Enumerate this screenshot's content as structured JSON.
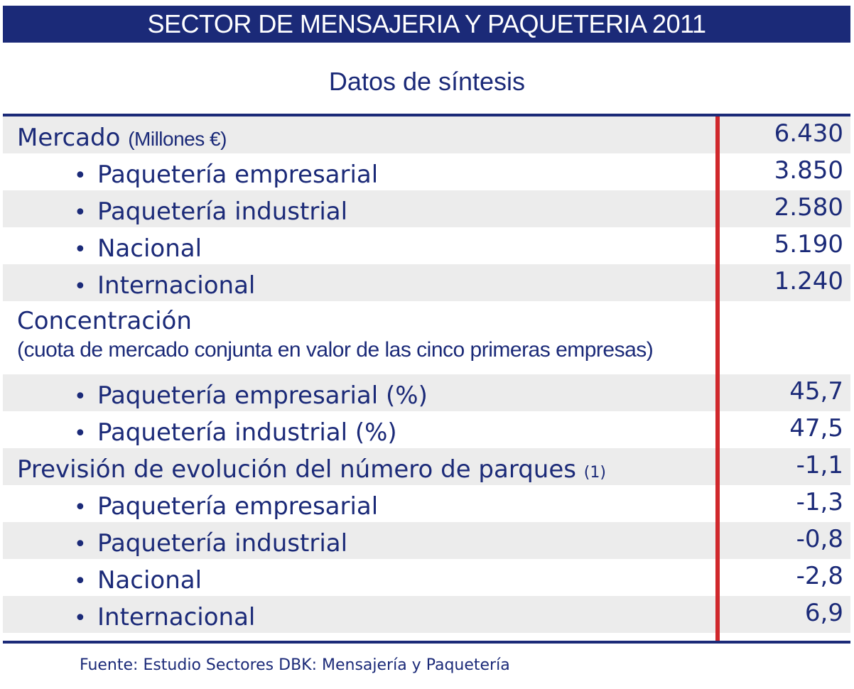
{
  "title": "SECTOR DE MENSAJERIA Y PAQUETERIA 2011",
  "subtitle": "Datos de síntesis",
  "rows": [
    {
      "label": "Mercado",
      "suffix": "(Millones €)",
      "value": "6.430"
    },
    {
      "bullet": "•",
      "label": "Paquetería empresarial",
      "value": "3.850"
    },
    {
      "bullet": "•",
      "label": "Paquetería industrial",
      "value": "2.580"
    },
    {
      "bullet": "•",
      "label": "Nacional",
      "value": "5.190"
    },
    {
      "bullet": "•",
      "label": "Internacional",
      "value": "1.240"
    },
    {
      "label": "Concentración",
      "label2": "(cuota de mercado conjunta en valor de las cinco primeras empresas)",
      "value": ""
    },
    {
      "bullet": "•",
      "label": "Paquetería empresarial (%)",
      "value": "45,7"
    },
    {
      "bullet": "•",
      "label": "Paquetería industrial (%)",
      "value": "47,5"
    },
    {
      "label": "Previsión de evolución del número de parques",
      "suffix": "(1)",
      "value": "-1,1"
    },
    {
      "bullet": "•",
      "label": "Paquetería empresarial",
      "value": "-1,3"
    },
    {
      "bullet": "•",
      "label": "Paquetería industrial",
      "value": "-0,8"
    },
    {
      "bullet": "•",
      "label": "Nacional",
      "value": "-2,8"
    },
    {
      "bullet": "•",
      "label": "Internacional",
      "value": "6,9"
    }
  ],
  "source": "Fuente: Estudio Sectores DBK: Mensajería y Paquetería",
  "colors": {
    "navy": "#1b2a78",
    "red_divider": "#d0282c",
    "row_shade": "#ececec"
  }
}
